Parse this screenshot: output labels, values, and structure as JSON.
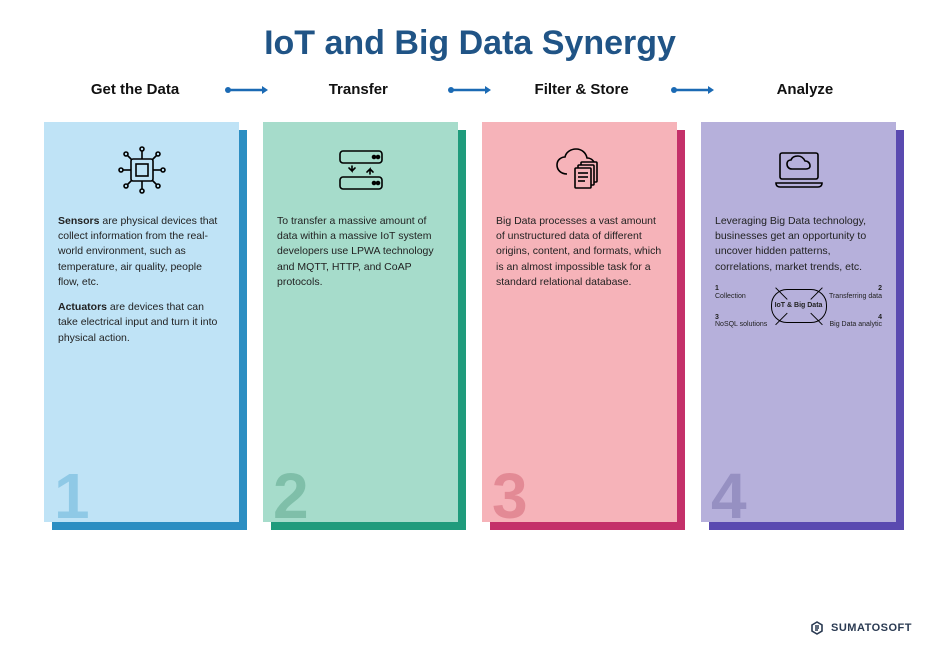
{
  "title": "IoT and Big Data Synergy",
  "arrow_color": "#1b6ab4",
  "steps": [
    {
      "label": "Get the Data"
    },
    {
      "label": "Transfer"
    },
    {
      "label": "Filter & Store"
    },
    {
      "label": "Analyze"
    }
  ],
  "cards": [
    {
      "num": "1",
      "bg": "#bfe3f6",
      "shadow": "#2c8ec2",
      "num_color": "#8fc9e6",
      "icon": "chip",
      "body_html": "<p><strong>Sensors</strong> are physical devices that collect information from the real-world environment, such as temperature, air quality, people flow, etc.</p><p><strong>Actuators</strong> are devices that can take electrical input and turn it into physical action.</p>"
    },
    {
      "num": "2",
      "bg": "#a6dccb",
      "shadow": "#1f9b7c",
      "num_color": "#7fbfa9",
      "icon": "servers",
      "body_html": "<p>To transfer a massive amount of data within a massive IoT system developers use LPWA technology and MQTT, HTTP, and CoAP protocols.</p>"
    },
    {
      "num": "3",
      "bg": "#f6b3b9",
      "shadow": "#c43069",
      "num_color": "#e38a95",
      "icon": "cloud-files",
      "body_html": "<p>Big Data processes a vast amount of unstructured data of different origins, content, and formats, which is an almost impossible task for a stan­dard relational database.</p>"
    },
    {
      "num": "4",
      "bg": "#b6b0db",
      "shadow": "#5a4ab0",
      "num_color": "#9690c2",
      "icon": "laptop-cloud",
      "body_html": "<p>Leveraging Big Data technology, businesses get an opportunity to un­cover hidden patterns, correlations, market trends, etc.</p>",
      "mini": {
        "center": "IoT & Big Data",
        "q1": {
          "n": "1",
          "t": "Collection"
        },
        "q2": {
          "n": "2",
          "t": "Transferring data"
        },
        "q3": {
          "n": "3",
          "t": "NoSQL solutions"
        },
        "q4": {
          "n": "4",
          "t": "Big Data analytic"
        }
      }
    }
  ],
  "footer": "SUMATOSOFT"
}
